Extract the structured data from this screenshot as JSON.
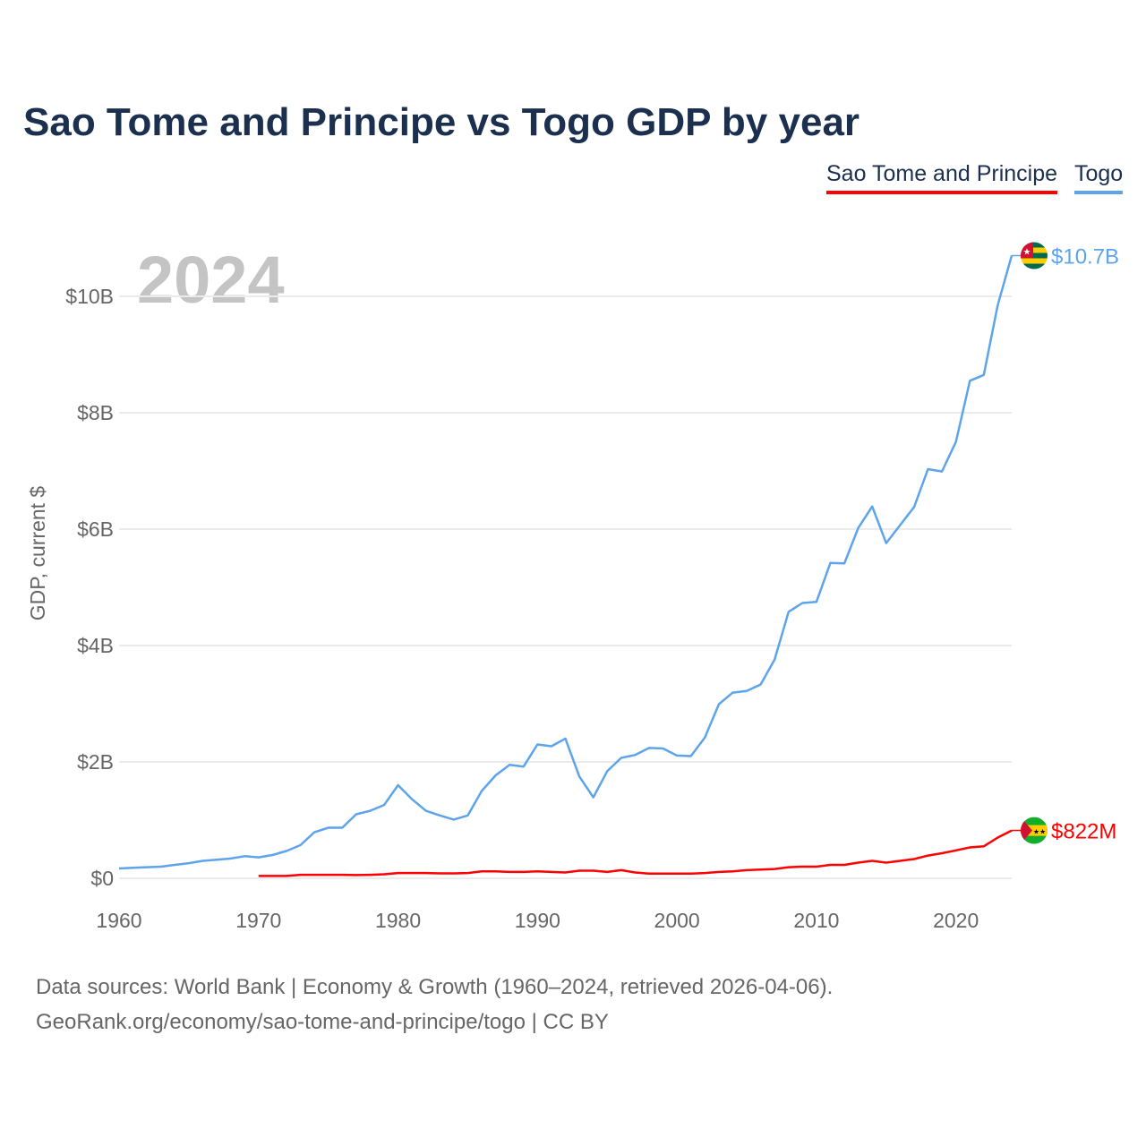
{
  "title": "Sao Tome and Principe vs Togo GDP by year",
  "legend": [
    "Sao Tome and Principe",
    "Togo"
  ],
  "footer": {
    "line1": "Data sources: World Bank | Economy & Growth (1960–2024, retrieved 2026-04-06).",
    "line2": "GeoRank.org/economy/sao-tome-and-principe/togo | CC BY"
  },
  "chart_data": {
    "type": "line",
    "title": "Sao Tome and Principe vs Togo GDP by year",
    "ylabel": "GDP, current $",
    "xlabel": "",
    "year_label": "2024",
    "xlim": [
      1960,
      2024
    ],
    "ylim": [
      0,
      11
    ],
    "x_ticks": [
      "1960",
      "1970",
      "1980",
      "1990",
      "2000",
      "2010",
      "2020"
    ],
    "y_ticks": [
      {
        "v": 0,
        "label": "$0"
      },
      {
        "v": 2,
        "label": "$2B"
      },
      {
        "v": 4,
        "label": "$4B"
      },
      {
        "v": 6,
        "label": "$6B"
      },
      {
        "v": 8,
        "label": "$8B"
      },
      {
        "v": 10,
        "label": "$10B"
      }
    ],
    "units": "billions USD",
    "series": [
      {
        "name": "Togo",
        "color": "#5da4ea",
        "start": 1960,
        "end_label": "$10.7B",
        "flag": "togo-flag",
        "values": [
          0.17,
          0.18,
          0.19,
          0.2,
          0.23,
          0.26,
          0.3,
          0.32,
          0.34,
          0.38,
          0.36,
          0.4,
          0.47,
          0.57,
          0.79,
          0.87,
          0.87,
          1.1,
          1.16,
          1.26,
          1.6,
          1.36,
          1.16,
          1.08,
          1.01,
          1.08,
          1.5,
          1.77,
          1.95,
          1.92,
          2.3,
          2.27,
          2.4,
          1.75,
          1.39,
          1.84,
          2.07,
          2.12,
          2.24,
          2.23,
          2.11,
          2.1,
          2.42,
          2.99,
          3.19,
          3.22,
          3.33,
          3.76,
          4.58,
          4.73,
          4.75,
          5.42,
          5.41,
          6.02,
          6.39,
          5.76,
          6.07,
          6.38,
          7.03,
          6.99,
          7.5,
          8.55,
          8.65,
          9.85,
          10.7
        ]
      },
      {
        "name": "Sao Tome and Principe",
        "color": "#ff0000",
        "start": 1970,
        "end_label": "$822M",
        "flag": "sao-tome-flag",
        "values": [
          0.04,
          0.04,
          0.04,
          0.06,
          0.06,
          0.06,
          0.06,
          0.055,
          0.06,
          0.07,
          0.09,
          0.09,
          0.09,
          0.085,
          0.085,
          0.09,
          0.12,
          0.12,
          0.11,
          0.11,
          0.12,
          0.11,
          0.1,
          0.13,
          0.13,
          0.11,
          0.14,
          0.1,
          0.08,
          0.08,
          0.08,
          0.08,
          0.09,
          0.11,
          0.12,
          0.14,
          0.15,
          0.16,
          0.19,
          0.2,
          0.2,
          0.23,
          0.23,
          0.27,
          0.3,
          0.27,
          0.3,
          0.33,
          0.39,
          0.43,
          0.48,
          0.53,
          0.55,
          0.7,
          0.822
        ]
      }
    ]
  }
}
